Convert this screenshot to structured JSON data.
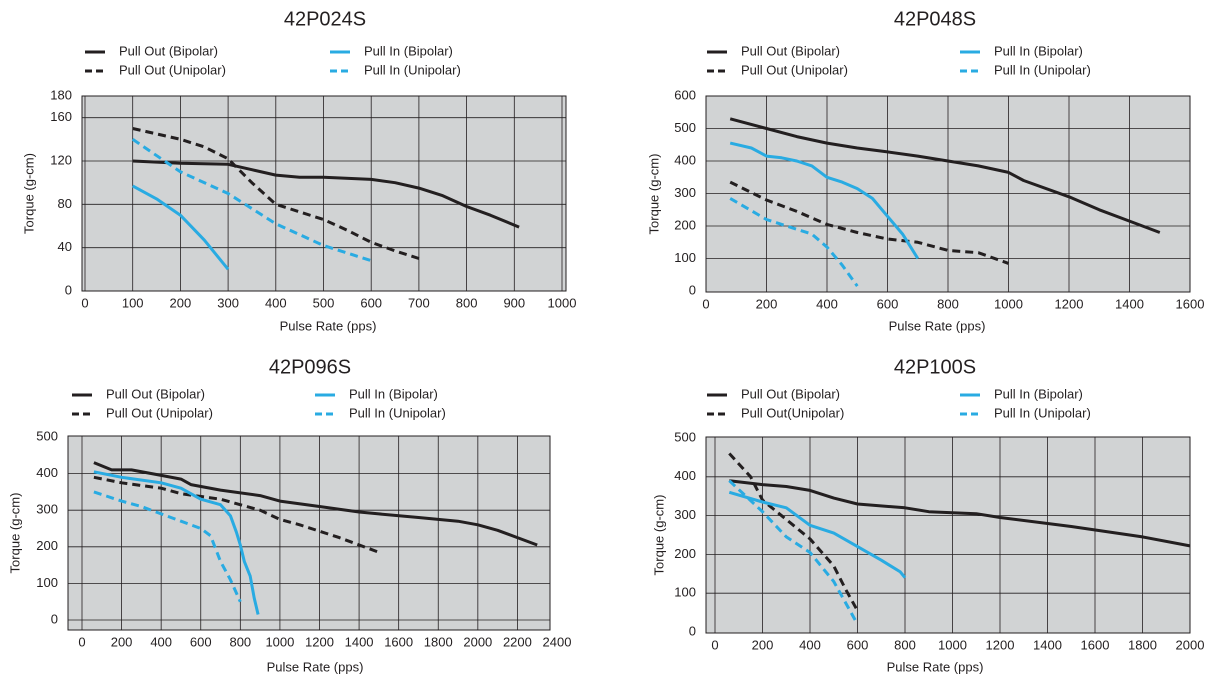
{
  "chart_data": [
    {
      "type": "line",
      "title": "42P024S",
      "x_label": "Pulse Rate (pps)",
      "y_label": "Torque (g-cm)",
      "grid": true,
      "xlim": [
        0,
        1000
      ],
      "xticks": [
        0,
        100,
        200,
        300,
        400,
        500,
        600,
        700,
        800,
        900,
        1000
      ],
      "ylim": [
        0,
        180
      ],
      "yticks": [
        0,
        40,
        80,
        120,
        160,
        180
      ],
      "series": [
        {
          "name": "Pull Out (Bipolar)",
          "color": "#231f20",
          "dashed": false,
          "x": [
            100,
            200,
            300,
            350,
            400,
            450,
            500,
            600,
            650,
            700,
            750,
            800,
            850,
            910
          ],
          "values": [
            120,
            118,
            117,
            112,
            107,
            105,
            105,
            103,
            100,
            95,
            88,
            78,
            70,
            59
          ]
        },
        {
          "name": "Pull Out (Unipolar)",
          "color": "#231f20",
          "dashed": true,
          "x": [
            100,
            200,
            250,
            300,
            350,
            400,
            450,
            500,
            550,
            600,
            650,
            700
          ],
          "values": [
            150,
            140,
            133,
            122,
            100,
            80,
            73,
            66,
            56,
            45,
            37,
            30
          ]
        },
        {
          "name": "Pull In (Bipolar)",
          "color": "#29abe2",
          "dashed": false,
          "x": [
            100,
            150,
            200,
            250,
            300
          ],
          "values": [
            97,
            85,
            70,
            47,
            20
          ]
        },
        {
          "name": "Pull In (Unipolar)",
          "color": "#29abe2",
          "dashed": true,
          "x": [
            100,
            200,
            300,
            400,
            500,
            600
          ],
          "values": [
            140,
            110,
            90,
            62,
            42,
            28
          ]
        }
      ]
    },
    {
      "type": "line",
      "title": "42P048S",
      "x_label": "Pulse Rate (pps)",
      "y_label": "Torque (g-cm)",
      "grid": true,
      "xlim": [
        0,
        1600
      ],
      "xticks": [
        0,
        200,
        400,
        600,
        800,
        1000,
        1200,
        1400,
        1600
      ],
      "ylim": [
        0,
        600
      ],
      "yticks": [
        0,
        100,
        200,
        300,
        400,
        500,
        600
      ],
      "series": [
        {
          "name": "Pull Out (Bipolar)",
          "color": "#231f20",
          "dashed": false,
          "x": [
            80,
            200,
            300,
            400,
            500,
            600,
            700,
            800,
            900,
            1000,
            1050,
            1200,
            1300,
            1400,
            1500
          ],
          "values": [
            530,
            500,
            475,
            455,
            440,
            428,
            415,
            400,
            385,
            365,
            340,
            290,
            250,
            215,
            180
          ]
        },
        {
          "name": "Pull Out (Unipolar)",
          "color": "#231f20",
          "dashed": true,
          "x": [
            80,
            200,
            300,
            400,
            500,
            600,
            700,
            800,
            900,
            1000
          ],
          "values": [
            335,
            280,
            245,
            205,
            180,
            160,
            150,
            125,
            118,
            85
          ]
        },
        {
          "name": "Pull In (Bipolar)",
          "color": "#29abe2",
          "dashed": false,
          "x": [
            80,
            150,
            200,
            250,
            300,
            350,
            400,
            450,
            500,
            550,
            600,
            650,
            700
          ],
          "values": [
            455,
            440,
            415,
            410,
            400,
            385,
            350,
            335,
            315,
            285,
            230,
            175,
            100
          ]
        },
        {
          "name": "Pull In (Unipolar)",
          "color": "#29abe2",
          "dashed": true,
          "x": [
            80,
            200,
            300,
            350,
            400,
            450,
            500
          ],
          "values": [
            285,
            220,
            190,
            175,
            135,
            80,
            15
          ]
        }
      ]
    },
    {
      "type": "line",
      "title": "42P096S",
      "x_label": "Pulse Rate (pps)",
      "y_label": "Torque (g-cm)",
      "grid": true,
      "xlim": [
        0,
        2400
      ],
      "xticks": [
        0,
        200,
        400,
        600,
        800,
        1000,
        1200,
        1400,
        1600,
        1800,
        2000,
        2200,
        2400
      ],
      "ylim": [
        0,
        500
      ],
      "yticks": [
        0,
        100,
        200,
        300,
        400,
        500
      ],
      "series": [
        {
          "name": "Pull Out (Bipolar)",
          "color": "#231f20",
          "dashed": false,
          "x": [
            60,
            150,
            250,
            400,
            500,
            550,
            700,
            900,
            1000,
            1200,
            1400,
            1500,
            1700,
            1900,
            2000,
            2100,
            2200,
            2300
          ],
          "values": [
            430,
            410,
            410,
            395,
            385,
            370,
            355,
            340,
            325,
            310,
            295,
            290,
            280,
            270,
            260,
            245,
            225,
            205
          ]
        },
        {
          "name": "Pull Out (Unipolar)",
          "color": "#231f20",
          "dashed": true,
          "x": [
            60,
            200,
            400,
            500,
            700,
            900,
            1000,
            1100,
            1300,
            1500
          ],
          "values": [
            390,
            375,
            360,
            345,
            330,
            300,
            275,
            260,
            225,
            185
          ]
        },
        {
          "name": "Pull In (Bipolar)",
          "color": "#29abe2",
          "dashed": false,
          "x": [
            60,
            200,
            400,
            500,
            600,
            700,
            750,
            780,
            800,
            820,
            850,
            870,
            890
          ],
          "values": [
            405,
            390,
            375,
            360,
            330,
            315,
            285,
            240,
            205,
            160,
            120,
            60,
            15
          ]
        },
        {
          "name": "Pull In (Unipolar)",
          "color": "#29abe2",
          "dashed": true,
          "x": [
            60,
            200,
            300,
            400,
            500,
            600,
            650,
            700,
            750,
            800
          ],
          "values": [
            350,
            325,
            310,
            290,
            270,
            250,
            230,
            160,
            110,
            50
          ]
        }
      ]
    },
    {
      "type": "line",
      "title": "42P100S",
      "x_label": "Pulse Rate (pps)",
      "y_label": "Torque (g-cm)",
      "grid": true,
      "xlim": [
        0,
        2000
      ],
      "xticks": [
        0,
        200,
        400,
        600,
        800,
        1000,
        1200,
        1400,
        1600,
        1800,
        2000
      ],
      "ylim": [
        0,
        500
      ],
      "yticks": [
        0,
        100,
        200,
        300,
        400,
        500
      ],
      "series": [
        {
          "name": "Pull Out (Bipolar)",
          "color": "#231f20",
          "dashed": false,
          "x": [
            60,
            200,
            300,
            400,
            500,
            600,
            800,
            900,
            1100,
            1200,
            1500,
            1800,
            2000
          ],
          "values": [
            390,
            380,
            375,
            365,
            345,
            330,
            320,
            310,
            305,
            295,
            272,
            245,
            222
          ]
        },
        {
          "name": "Pull Out(Unipolar)",
          "color": "#231f20",
          "dashed": true,
          "x": [
            60,
            150,
            200,
            300,
            400,
            500,
            550,
            600
          ],
          "values": [
            460,
            400,
            340,
            290,
            240,
            170,
            110,
            55
          ]
        },
        {
          "name": "Pull In (Bipolar)",
          "color": "#29abe2",
          "dashed": false,
          "x": [
            60,
            200,
            300,
            400,
            500,
            600,
            700,
            780,
            800
          ],
          "values": [
            360,
            335,
            320,
            275,
            255,
            220,
            185,
            155,
            140
          ]
        },
        {
          "name": "Pull In (Unipolar)",
          "color": "#29abe2",
          "dashed": true,
          "x": [
            60,
            200,
            300,
            400,
            500,
            600
          ],
          "values": [
            390,
            310,
            245,
            205,
            130,
            20
          ]
        }
      ]
    }
  ]
}
